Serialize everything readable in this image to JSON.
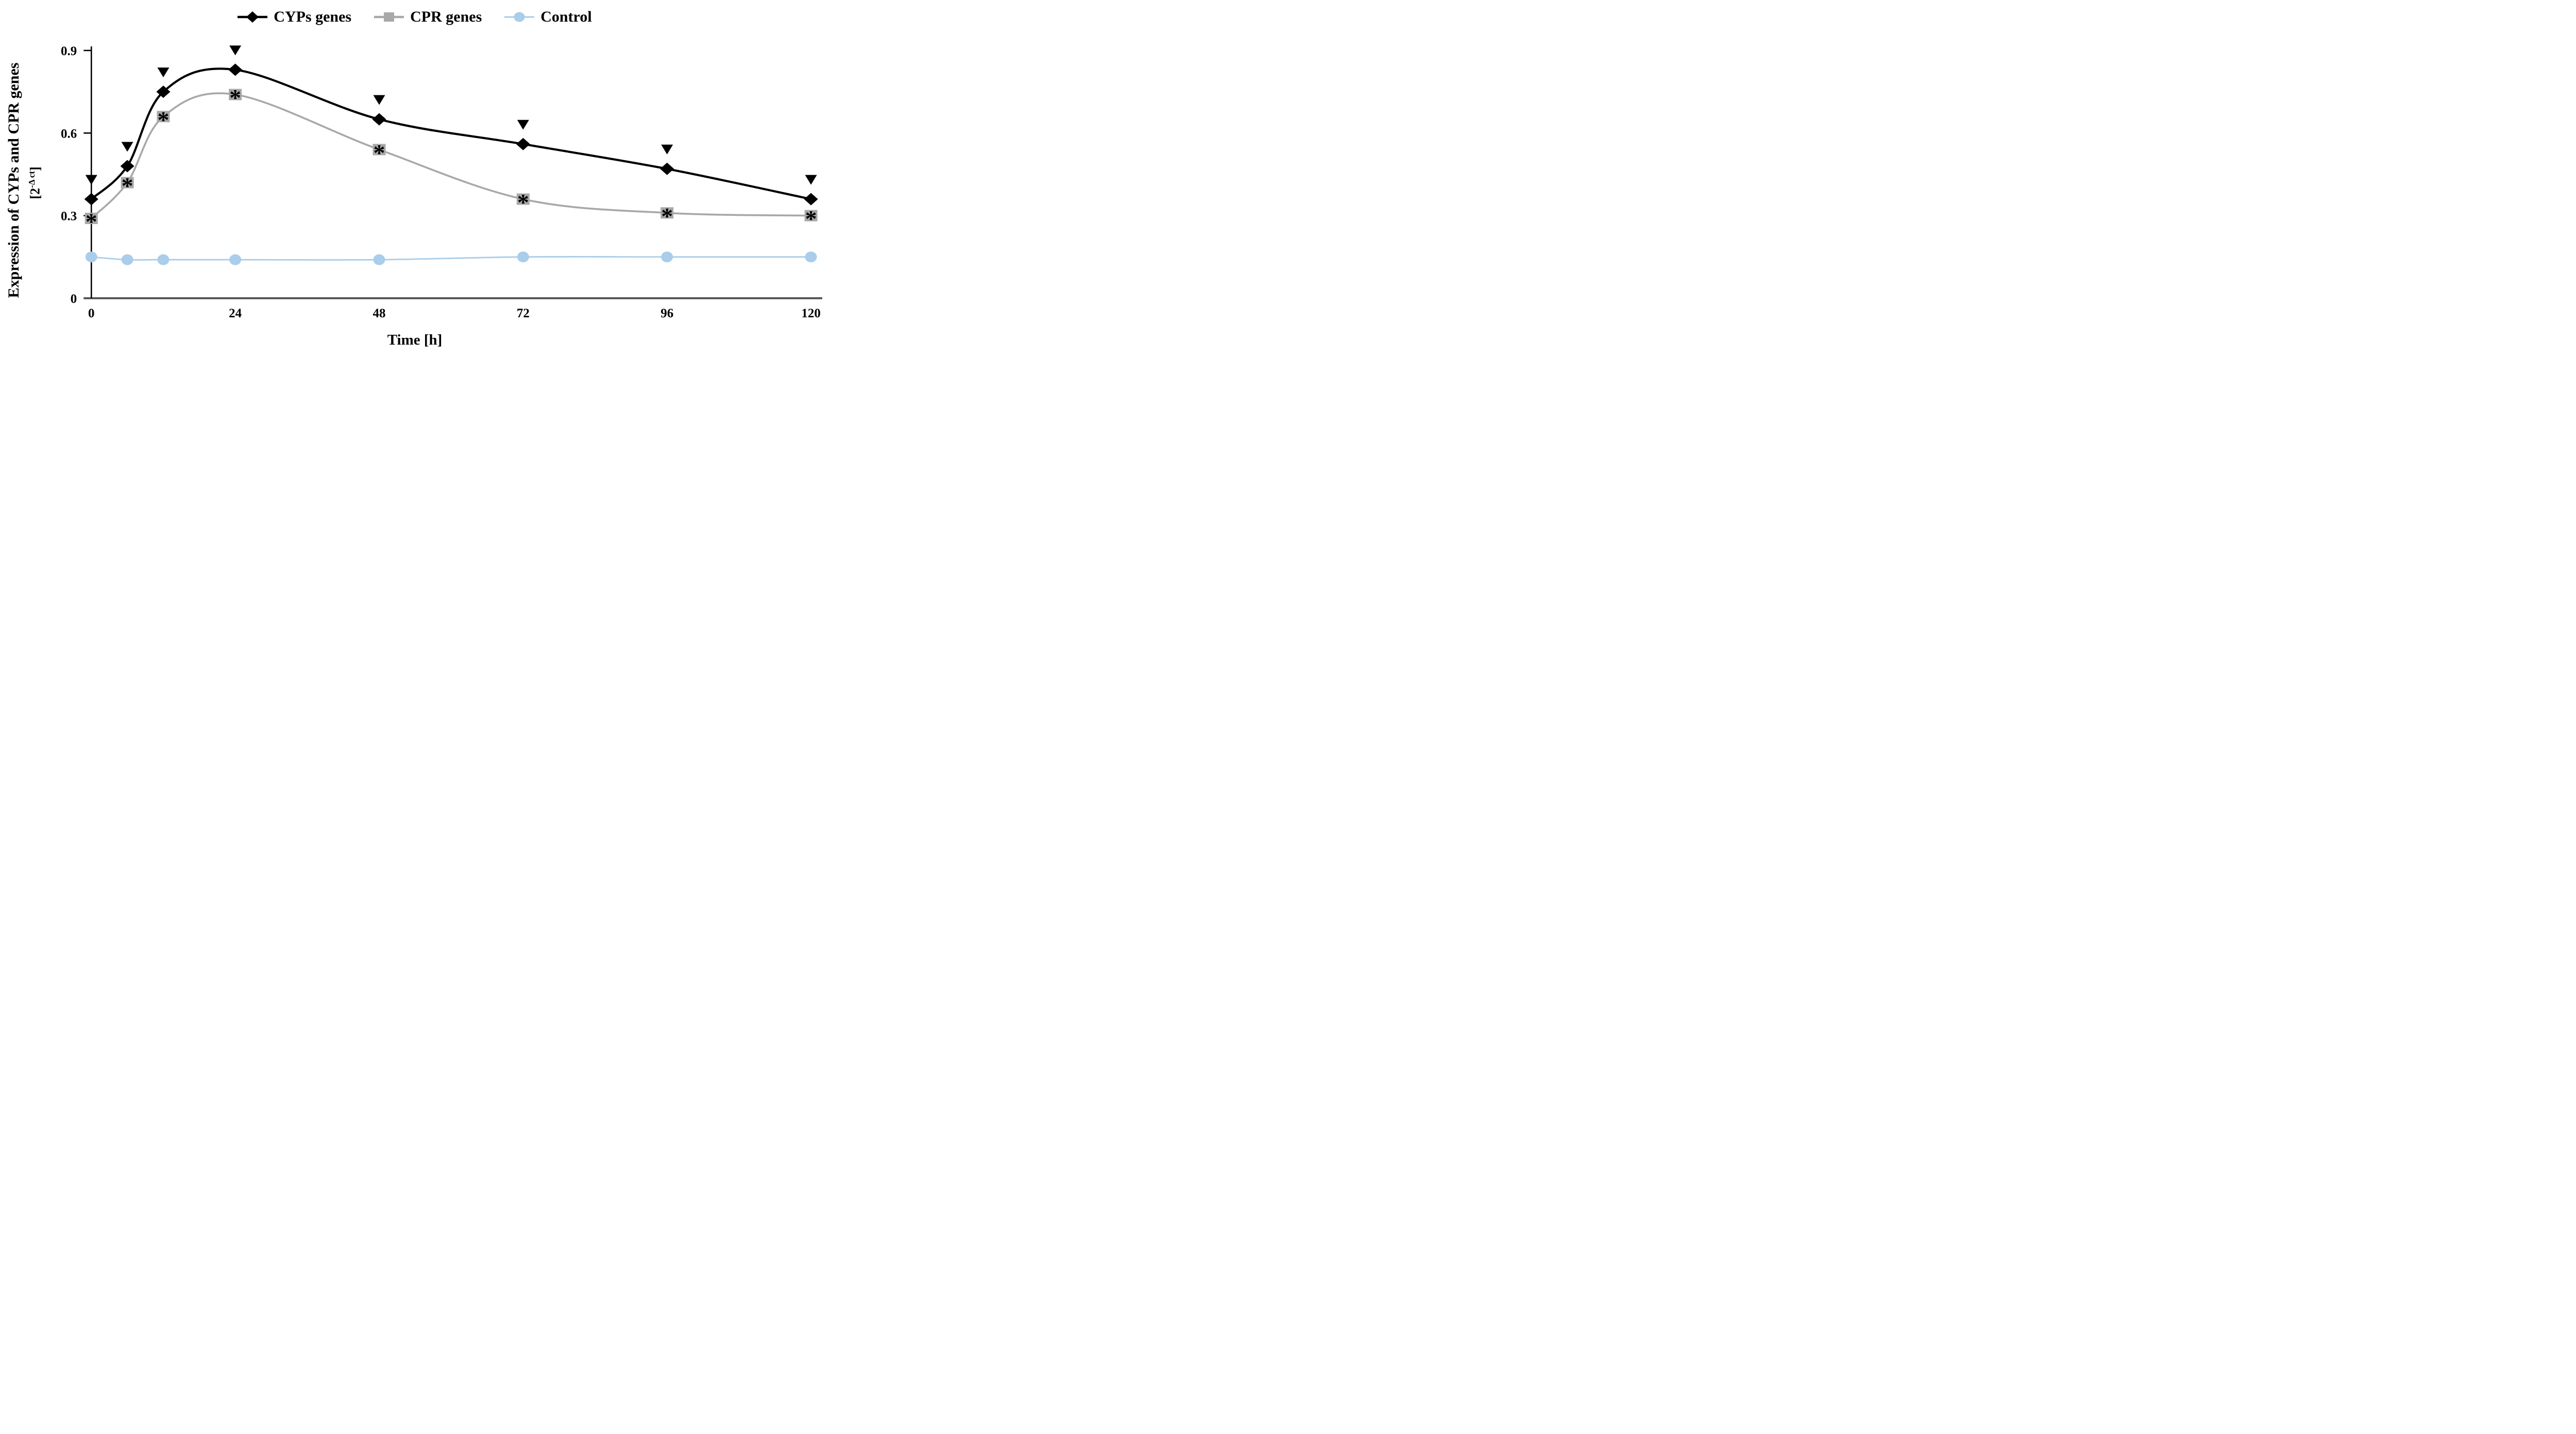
{
  "chart_data": {
    "type": "line",
    "x": [
      0,
      6,
      12,
      24,
      48,
      72,
      96,
      120
    ],
    "x_ticks": [
      0,
      24,
      48,
      72,
      96,
      120
    ],
    "x_tick_labels": [
      "0",
      "24",
      "48",
      "72",
      "96",
      "120"
    ],
    "y_ticks": [
      0,
      0.3,
      0.6,
      0.9
    ],
    "y_tick_labels": [
      "0",
      "0.3",
      "0.6",
      "0.9"
    ],
    "xlim": [
      0,
      120
    ],
    "ylim": [
      0,
      0.9
    ],
    "grid": false,
    "legend_position": "top-center",
    "xlabel": "Time [h]",
    "ylabel_main": "Expression of CYPs and CPR genes",
    "ylabel_unit": {
      "open": "[2",
      "sup": "-Δ ct",
      "close": "]"
    },
    "series": [
      {
        "name": "CYPs genes",
        "color": "#000000",
        "marker": "diamond",
        "line_style": "smooth",
        "above_point_symbol": "▼",
        "above_point_symbol_meaning": "black down-triangle above every point",
        "values": [
          0.36,
          0.48,
          0.75,
          0.83,
          0.65,
          0.56,
          0.47,
          0.36
        ]
      },
      {
        "name": "CPR genes",
        "color": "#a8a8a8",
        "marker": "square",
        "marker_overlay_symbol": "*",
        "marker_overlay_color": "#ff0000",
        "line_style": "smooth",
        "values": [
          0.29,
          0.42,
          0.66,
          0.74,
          0.54,
          0.36,
          0.31,
          0.3
        ]
      },
      {
        "name": "Control",
        "color": "#a9cdea",
        "marker": "circle",
        "line_style": "smooth",
        "values": [
          0.15,
          0.14,
          0.14,
          0.14,
          0.14,
          0.15,
          0.15,
          0.15
        ]
      }
    ]
  },
  "colors": {
    "background": "#ffffff",
    "x_axis": "#595959",
    "y_axis": "#000000",
    "text": "#000000",
    "significance_red": "#ff0000"
  }
}
